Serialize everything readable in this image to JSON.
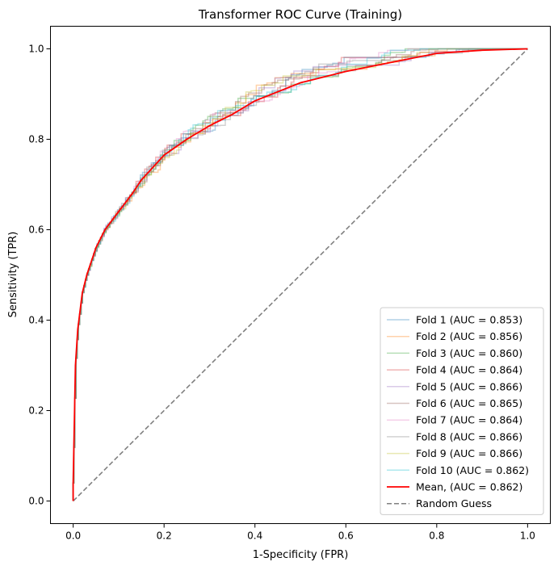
{
  "chart_data": {
    "type": "line",
    "title": "Transformer ROC Curve (Training)",
    "xlabel": "1-Specificity (FPR)",
    "ylabel": "Sensitivity (TPR)",
    "xlim": [
      -0.05,
      1.05
    ],
    "ylim": [
      -0.05,
      1.05
    ],
    "xticks": [
      "0.0",
      "0.2",
      "0.4",
      "0.6",
      "0.8",
      "1.0"
    ],
    "yticks": [
      "0.0",
      "0.2",
      "0.4",
      "0.6",
      "0.8",
      "1.0"
    ],
    "grid": false,
    "legend_position": "lower right",
    "mean_roc": {
      "fpr": [
        0.0,
        0.0,
        0.005,
        0.01,
        0.02,
        0.03,
        0.05,
        0.07,
        0.1,
        0.13,
        0.15,
        0.2,
        0.25,
        0.3,
        0.35,
        0.4,
        0.5,
        0.6,
        0.7,
        0.8,
        0.9,
        1.0
      ],
      "tpr": [
        0.0,
        0.04,
        0.3,
        0.38,
        0.46,
        0.5,
        0.56,
        0.6,
        0.64,
        0.68,
        0.71,
        0.765,
        0.8,
        0.83,
        0.855,
        0.885,
        0.925,
        0.95,
        0.97,
        0.99,
        0.997,
        1.0
      ]
    },
    "series": [
      {
        "name": "Fold 1 (AUC = 0.853)",
        "color": "#1f77b4",
        "style": "solid",
        "alpha": 0.35
      },
      {
        "name": "Fold 2 (AUC = 0.856)",
        "color": "#ff7f0e",
        "style": "solid",
        "alpha": 0.35
      },
      {
        "name": "Fold 3 (AUC = 0.860)",
        "color": "#2ca02c",
        "style": "solid",
        "alpha": 0.35
      },
      {
        "name": "Fold 4 (AUC = 0.864)",
        "color": "#d62728",
        "style": "solid",
        "alpha": 0.35
      },
      {
        "name": "Fold 5 (AUC = 0.866)",
        "color": "#9467bd",
        "style": "solid",
        "alpha": 0.35
      },
      {
        "name": "Fold 6 (AUC = 0.865)",
        "color": "#8c564b",
        "style": "solid",
        "alpha": 0.35
      },
      {
        "name": "Fold 7 (AUC = 0.864)",
        "color": "#e377c2",
        "style": "solid",
        "alpha": 0.35
      },
      {
        "name": "Fold 8 (AUC = 0.866)",
        "color": "#7f7f7f",
        "style": "solid",
        "alpha": 0.35
      },
      {
        "name": "Fold 9 (AUC = 0.866)",
        "color": "#bcbd22",
        "style": "solid",
        "alpha": 0.35
      },
      {
        "name": "Fold 10 (AUC = 0.862)",
        "color": "#17becf",
        "style": "solid",
        "alpha": 0.35
      },
      {
        "name": "Mean, (AUC = 0.862)",
        "color": "#ff0000",
        "style": "solid",
        "alpha": 1.0
      },
      {
        "name": "Random Guess",
        "color": "#808080",
        "style": "dashed",
        "alpha": 1.0,
        "x": [
          0,
          1
        ],
        "y": [
          0,
          1
        ]
      }
    ]
  }
}
